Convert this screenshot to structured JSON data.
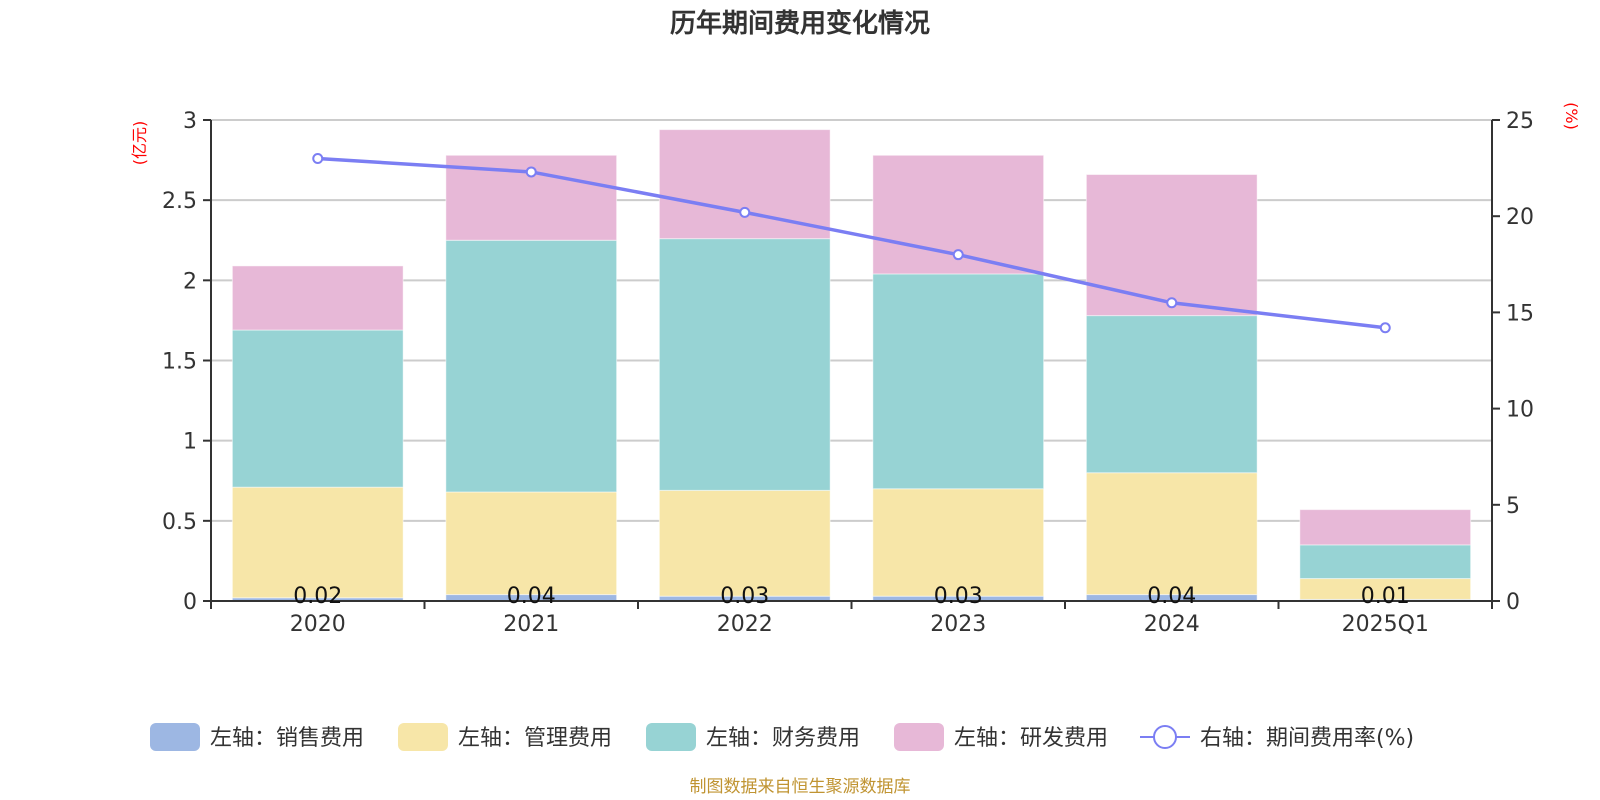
{
  "title": "历年期间费用变化情况",
  "footer": "制图数据来自恒生聚源数据库",
  "chart_data": {
    "type": "bar",
    "stacked": true,
    "title": "历年期间费用变化情况",
    "categories": [
      "2020",
      "2021",
      "2022",
      "2023",
      "2024",
      "2025Q1"
    ],
    "left_axis": {
      "label": "(亿元)",
      "ylim": [
        0,
        3
      ],
      "ticks": [
        "0",
        "0.5",
        "1",
        "1.5",
        "2",
        "2.5",
        "3"
      ]
    },
    "right_axis": {
      "label": "(%)",
      "ylim": [
        0,
        25
      ],
      "ticks": [
        "0",
        "5",
        "10",
        "15",
        "20",
        "25"
      ]
    },
    "grid": true,
    "legend_position": "bottom",
    "series": [
      {
        "name": "左轴：销售费用",
        "axis": "left",
        "kind": "bar",
        "color": "#9db7e3",
        "values": [
          0.02,
          0.04,
          0.03,
          0.03,
          0.04,
          0.01
        ],
        "labels": [
          "0.02",
          "0.04",
          "0.03",
          "0.03",
          "0.04",
          "0.01"
        ]
      },
      {
        "name": "左轴：管理费用",
        "axis": "left",
        "kind": "bar",
        "color": "#f7e6a8",
        "values": [
          0.69,
          0.64,
          0.66,
          0.67,
          0.76,
          0.13
        ]
      },
      {
        "name": "左轴：财务费用",
        "axis": "left",
        "kind": "bar",
        "color": "#97d3d4",
        "values": [
          0.98,
          1.57,
          1.57,
          1.34,
          0.98,
          0.21
        ]
      },
      {
        "name": "左轴：研发费用",
        "axis": "left",
        "kind": "bar",
        "color": "#e7b8d7",
        "values": [
          0.4,
          0.53,
          0.68,
          0.74,
          0.88,
          0.22
        ]
      },
      {
        "name": "右轴：期间费用率(%)",
        "axis": "right",
        "kind": "line",
        "color": "#7b7ef3",
        "values": [
          23.0,
          22.3,
          20.2,
          18.0,
          15.5,
          14.2
        ]
      }
    ]
  }
}
